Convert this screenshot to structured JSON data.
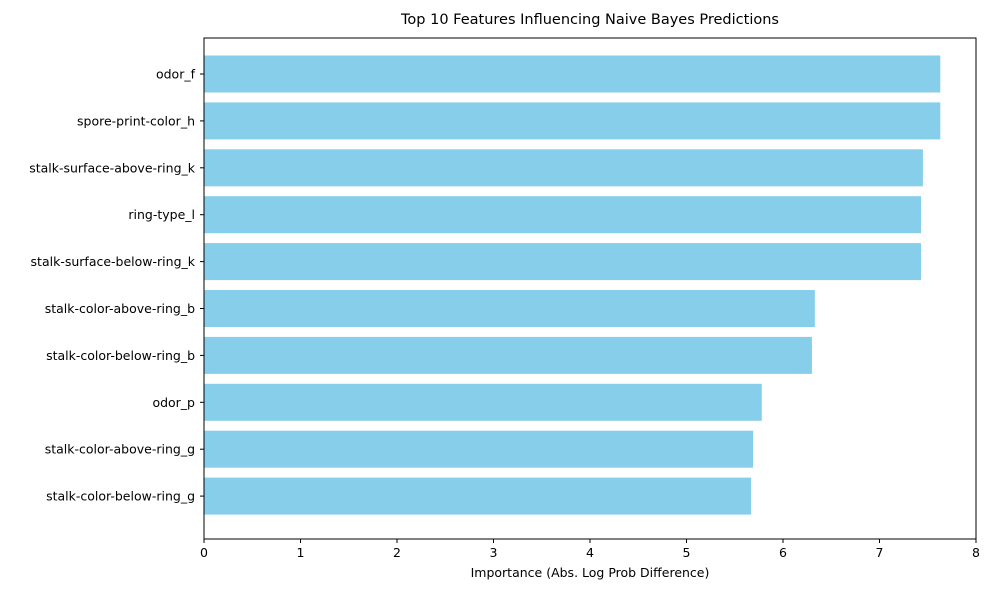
{
  "chart_data": {
    "type": "bar",
    "orientation": "horizontal",
    "title": "Top 10 Features Influencing Naive Bayes Predictions",
    "xlabel": "Importance (Abs. Log Prob Difference)",
    "ylabel": "",
    "xlim": [
      0,
      8
    ],
    "xticks": [
      "0",
      "1",
      "2",
      "3",
      "4",
      "5",
      "6",
      "7",
      "8"
    ],
    "grid": false,
    "bar_color": "#87CEEB",
    "categories": [
      "odor_f",
      "spore-print-color_h",
      "stalk-surface-above-ring_k",
      "ring-type_l",
      "stalk-surface-below-ring_k",
      "stalk-color-above-ring_b",
      "stalk-color-below-ring_b",
      "odor_p",
      "stalk-color-above-ring_g",
      "stalk-color-below-ring_g"
    ],
    "values": [
      7.63,
      7.63,
      7.45,
      7.43,
      7.43,
      6.33,
      6.3,
      5.78,
      5.69,
      5.67
    ]
  }
}
